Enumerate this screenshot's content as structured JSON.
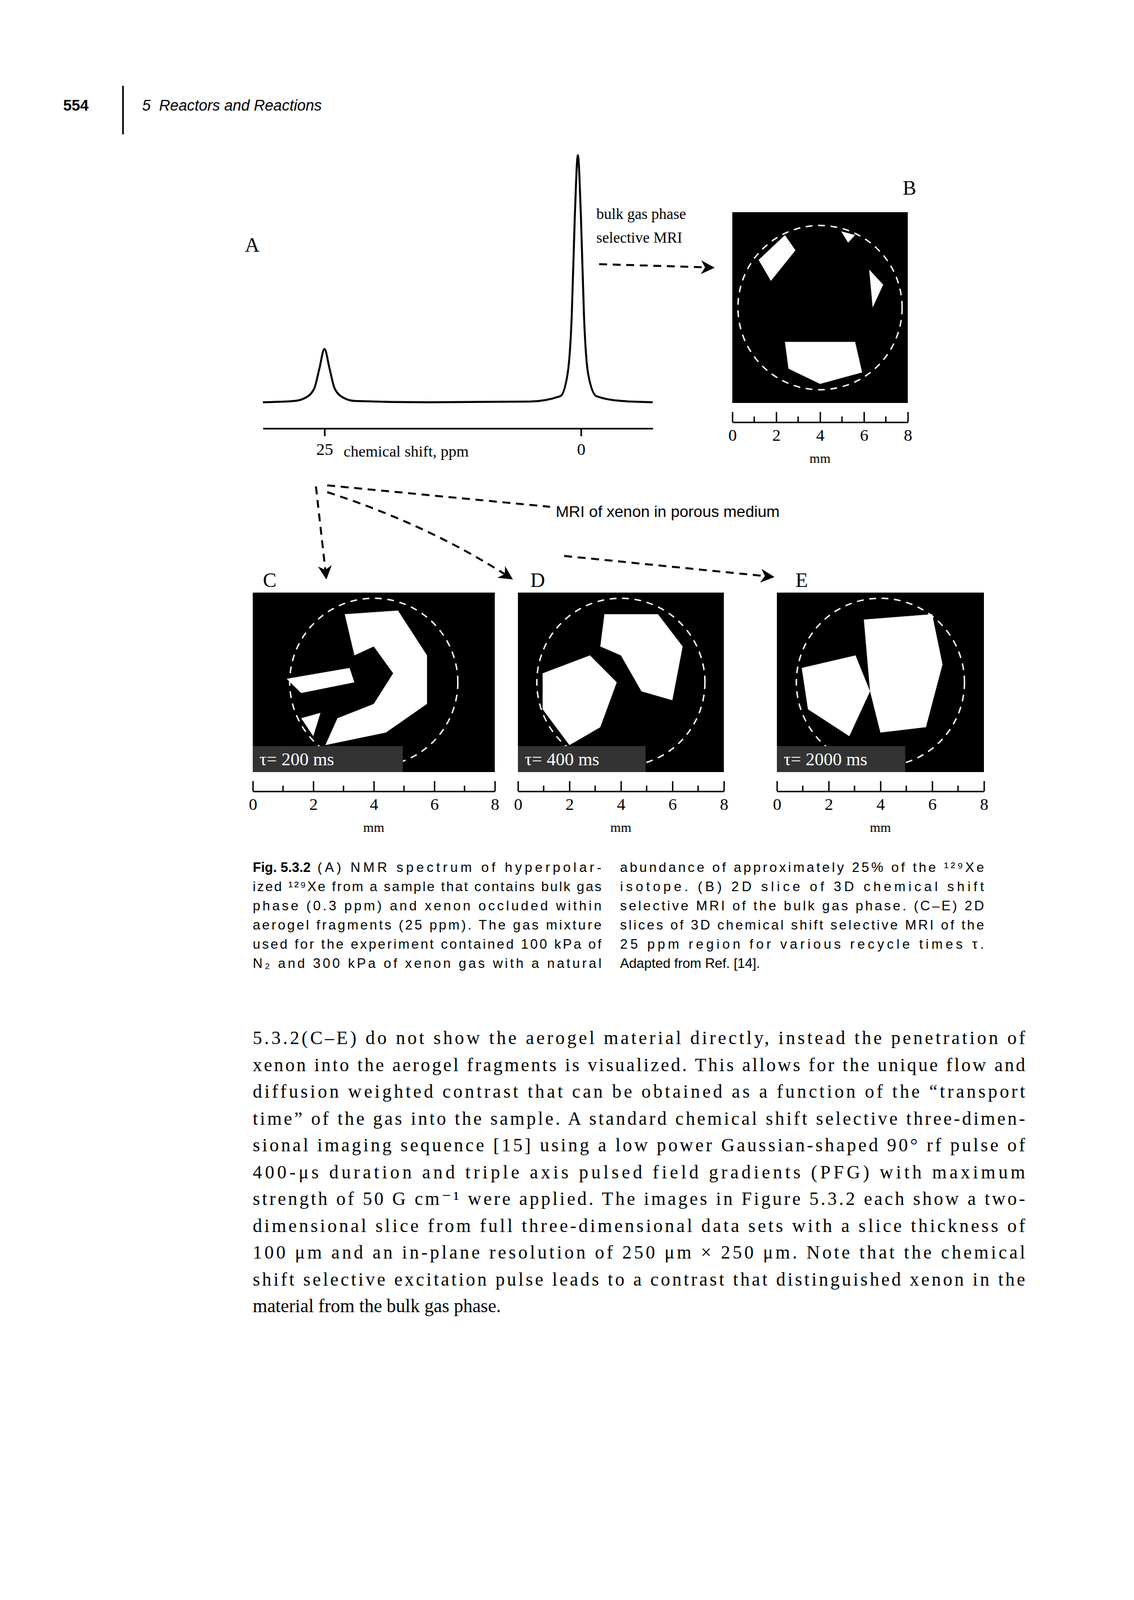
{
  "header": {
    "page": 554,
    "running_head": "5  Reactors and Reactions"
  },
  "chart_data": {
    "type": "line",
    "color": "#000000",
    "tick_labels": "x",
    "x": [
      31,
      28,
      27,
      26,
      25.5,
      25,
      24.5,
      24,
      23,
      22,
      15,
      5,
      2,
      1.3,
      0.9,
      0.6,
      0.3,
      0,
      -0.3,
      -0.7,
      -1.5,
      -4,
      -7
    ],
    "values": [
      0.5,
      1,
      2,
      6,
      14,
      22,
      14,
      6,
      2,
      1,
      0.5,
      0.8,
      3,
      12,
      35,
      75,
      100,
      75,
      35,
      12,
      3,
      1,
      0.5
    ],
    "xlim": [
      31,
      -7
    ],
    "ylim": [
      -10,
      105
    ],
    "xticks": [
      25,
      0
    ],
    "xlabel": "chemical shift, ppm",
    "annotations": [
      "bulk gas phase",
      "selective MRI"
    ]
  },
  "figure": {
    "spectrum_label": "A",
    "arrow_label": "MRI of xenon in porous medium",
    "panels": [
      {
        "label": "B",
        "scale": {
          "xlim": [
            0,
            8
          ],
          "ticks": [
            0,
            2,
            4,
            6,
            8
          ],
          "minor_ticks": [
            1,
            3,
            5,
            7
          ],
          "unit": "mm"
        }
      },
      {
        "label": "C",
        "tau_label": "τ= 200 ms",
        "scale": {
          "xlim": [
            0,
            8
          ],
          "ticks": [
            0,
            2,
            4,
            6,
            8
          ],
          "minor_ticks": [
            1,
            3,
            5,
            7
          ],
          "unit": "mm"
        }
      },
      {
        "label": "D",
        "tau_label": "τ= 400 ms",
        "scale": {
          "xlim": [
            0,
            8
          ],
          "ticks": [
            0,
            2,
            4,
            6,
            8
          ],
          "minor_ticks": [
            1,
            3,
            5,
            7
          ],
          "unit": "mm"
        }
      },
      {
        "label": "E",
        "tau_label": "τ= 2000 ms",
        "scale": {
          "xlim": [
            0,
            8
          ],
          "ticks": [
            0,
            2,
            4,
            6,
            8
          ],
          "minor_ticks": [
            1,
            3,
            5,
            7
          ],
          "unit": "mm"
        }
      }
    ]
  },
  "caption": {
    "label": "Fig. 5.3.2",
    "left": [
      "(A) NMR spectrum of hyperpolar-",
      "ized ¹²⁹Xe from a sample that contains bulk gas",
      "phase (0.3 ppm) and xenon occluded within",
      "aerogel fragments (25 ppm). The gas mixture",
      "used for the experiment contained 100 kPa of",
      "N₂ and 300 kPa of xenon gas with a natural"
    ],
    "right": [
      "abundance of approximately 25% of the ¹²⁹Xe",
      "isotope. (B) 2D slice of 3D chemical shift",
      "selective MRI of the bulk gas phase. (C–E) 2D",
      "slices of 3D chemical shift selective MRI of the",
      "25 ppm region for various recycle times τ.",
      "Adapted from Ref. [14]."
    ]
  },
  "body": {
    "lines": [
      "5.3.2(C–E) do not show the aerogel material directly, instead the penetration of",
      "xenon into the aerogel fragments is visualized. This allows for the unique flow and",
      "diffusion weighted contrast that can be obtained as a function of the “transport",
      "time” of the gas into the sample. A standard chemical shift selective three-dimen-",
      "sional imaging sequence [15] using a low power Gaussian-shaped 90° rf pulse of",
      "400-μs duration and triple axis pulsed field gradients (PFG) with maximum",
      "strength of 50 G cm⁻¹ were applied. The images in Figure 5.3.2 each show a two-",
      "dimensional slice from full three-dimensional data sets with a slice thickness of",
      "100 μm and an in-plane resolution of 250 μm × 250 μm. Note that the chemical",
      "shift selective excitation pulse leads to a contrast that distinguished xenon in the",
      "material from the bulk gas phase."
    ]
  }
}
